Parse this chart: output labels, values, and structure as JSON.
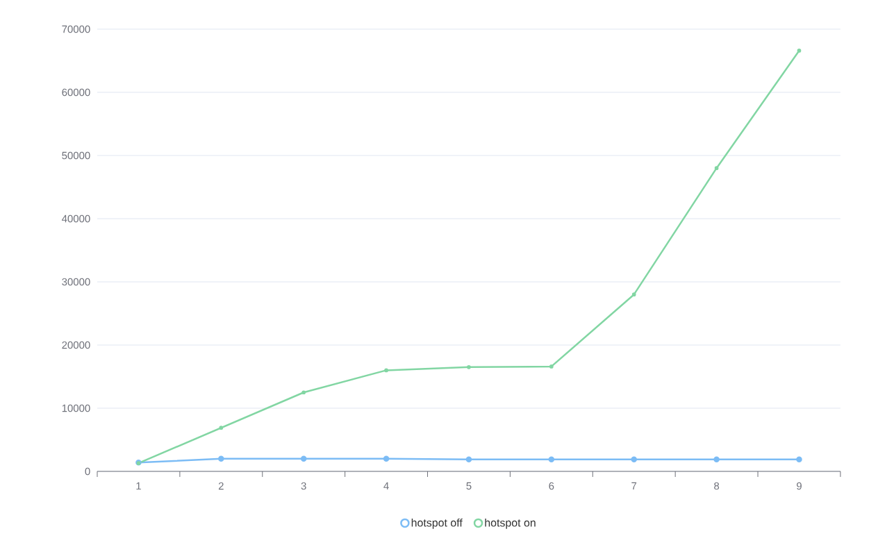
{
  "chart_data": {
    "type": "line",
    "categories": [
      "1",
      "2",
      "3",
      "4",
      "5",
      "6",
      "7",
      "8",
      "9"
    ],
    "series": [
      {
        "name": "hotspot off",
        "color": "#7cbcf5",
        "values": [
          1400,
          2000,
          2000,
          2000,
          1900,
          1900,
          1900,
          1900,
          1900
        ]
      },
      {
        "name": "hotspot on",
        "color": "#82d6a3",
        "values": [
          1300,
          6900,
          12500,
          16000,
          16500,
          16600,
          28000,
          48000,
          66600
        ]
      }
    ],
    "ylim": [
      0,
      70000
    ],
    "yticks": [
      0,
      10000,
      20000,
      30000,
      40000,
      50000,
      60000,
      70000
    ],
    "grid": "y",
    "legend": "bottom",
    "marker": "circle",
    "line_style": "solid"
  }
}
